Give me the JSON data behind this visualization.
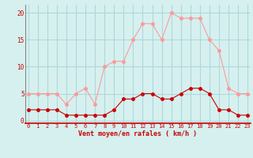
{
  "x": [
    0,
    1,
    2,
    3,
    4,
    5,
    6,
    7,
    8,
    9,
    10,
    11,
    12,
    13,
    14,
    15,
    16,
    17,
    18,
    19,
    20,
    21,
    22,
    23
  ],
  "wind_mean": [
    2,
    2,
    2,
    2,
    1,
    1,
    1,
    1,
    1,
    2,
    4,
    4,
    5,
    5,
    4,
    4,
    5,
    6,
    6,
    5,
    2,
    2,
    1,
    1
  ],
  "wind_gust": [
    5,
    5,
    5,
    5,
    3,
    5,
    6,
    3,
    10,
    11,
    11,
    15,
    18,
    18,
    15,
    20,
    19,
    19,
    19,
    15,
    13,
    6,
    5,
    5
  ],
  "background_color": "#d6f0f0",
  "grid_color": "#b0d8d8",
  "mean_color": "#cc0000",
  "gust_color": "#ff9999",
  "xlabel": "Vent moyen/en rafales ( km/h )",
  "ytick_labels": [
    "0",
    "5",
    "10",
    "15",
    "20"
  ],
  "yticks": [
    0,
    5,
    10,
    15,
    20
  ],
  "ylim": [
    -0.5,
    21.5
  ],
  "xlim": [
    -0.3,
    23.3
  ]
}
